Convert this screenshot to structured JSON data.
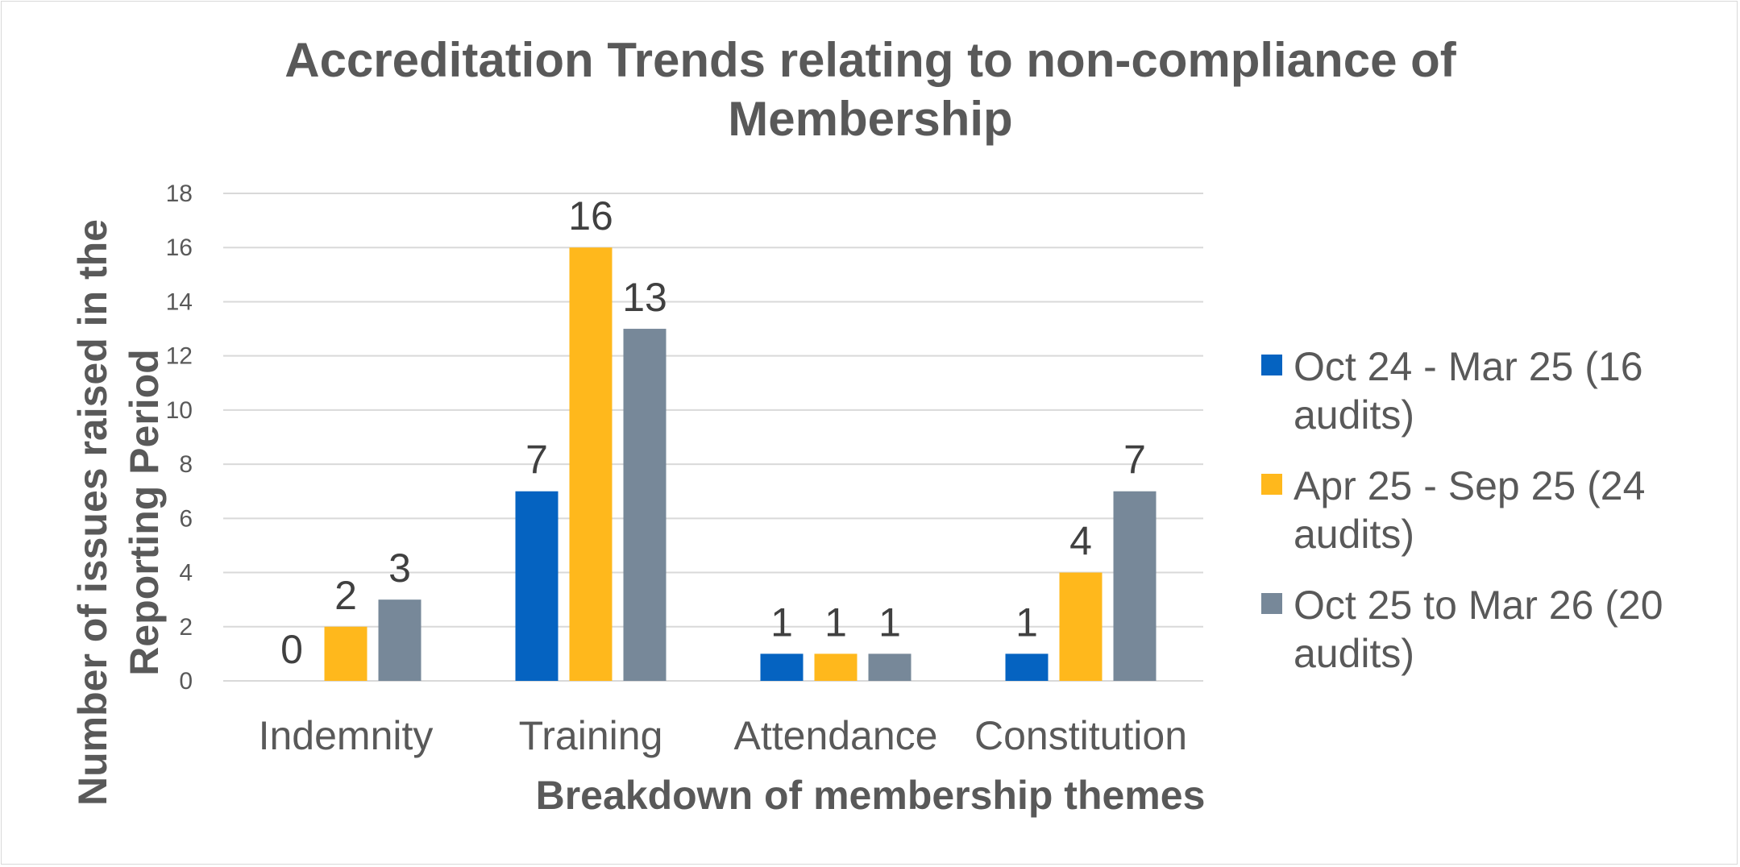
{
  "chart_data": {
    "type": "bar",
    "title": "Accreditation Trends relating to non-compliance of Membership",
    "xlabel": "Breakdown of membership themes",
    "ylabel": "Number of issues raised in the Reporting Period",
    "categories": [
      "Indemnity",
      "Training",
      "Attendance",
      "Constitution"
    ],
    "series": [
      {
        "name": "Oct 24 - Mar 25 (16 audits)",
        "values": [
          0,
          7,
          1,
          1
        ],
        "color": "#0563C1"
      },
      {
        "name": "Apr 25 - Sep 25 (24 audits)",
        "values": [
          2,
          16,
          1,
          4
        ],
        "color": "#FFB81C"
      },
      {
        "name": "Oct 25 to Mar 26 (20 audits)",
        "values": [
          3,
          13,
          1,
          7
        ],
        "color": "#778899"
      }
    ],
    "ylim": [
      0,
      18
    ],
    "yticks": [
      0,
      2,
      4,
      6,
      8,
      10,
      12,
      14,
      16,
      18
    ],
    "grid": true,
    "legend_position": "right",
    "data_labels": true
  }
}
